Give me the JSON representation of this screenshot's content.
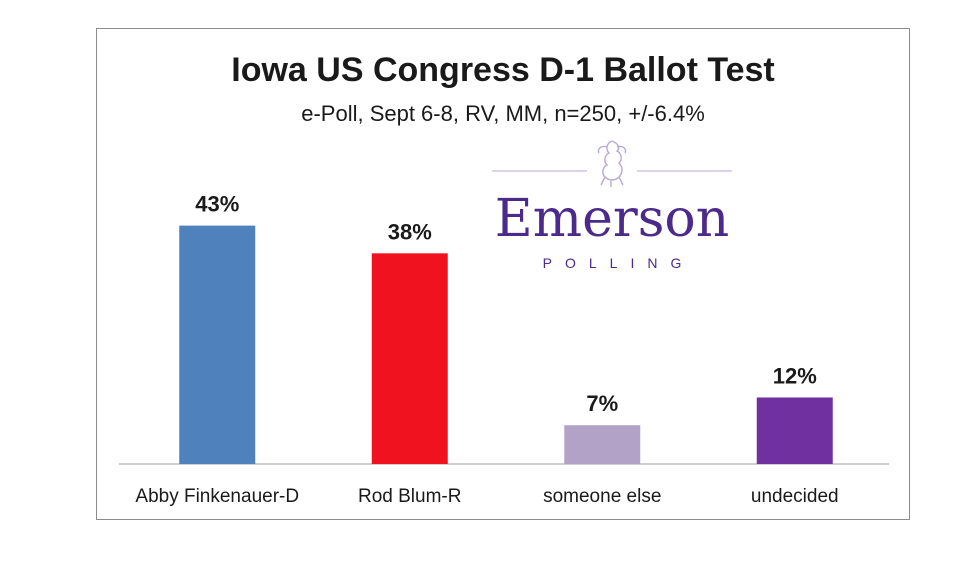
{
  "colors": {
    "bar_1": "#4f81bd",
    "bar_2": "#f0121e",
    "bar_3": "#b3a2c7",
    "bar_4": "#7030a0",
    "logo": "#4b2a8c"
  },
  "logo": {
    "wordmark": "Emerson",
    "subtitle": "POLLING",
    "icon": "lion-crest-icon"
  },
  "chart_data": {
    "type": "bar",
    "title": "Iowa US Congress  D-1 Ballot Test",
    "subtitle": "e-Poll, Sept 6-8, RV, MM, n=250, +/-6.4%",
    "categories": [
      "Abby Finkenauer-D",
      "Rod Blum-R",
      "someone else",
      "undecided"
    ],
    "values": [
      43,
      38,
      7,
      12
    ],
    "data_labels": [
      "43%",
      "38%",
      "7%",
      "12%"
    ],
    "ylim": [
      0,
      50
    ],
    "grid": false,
    "legend": "none"
  }
}
